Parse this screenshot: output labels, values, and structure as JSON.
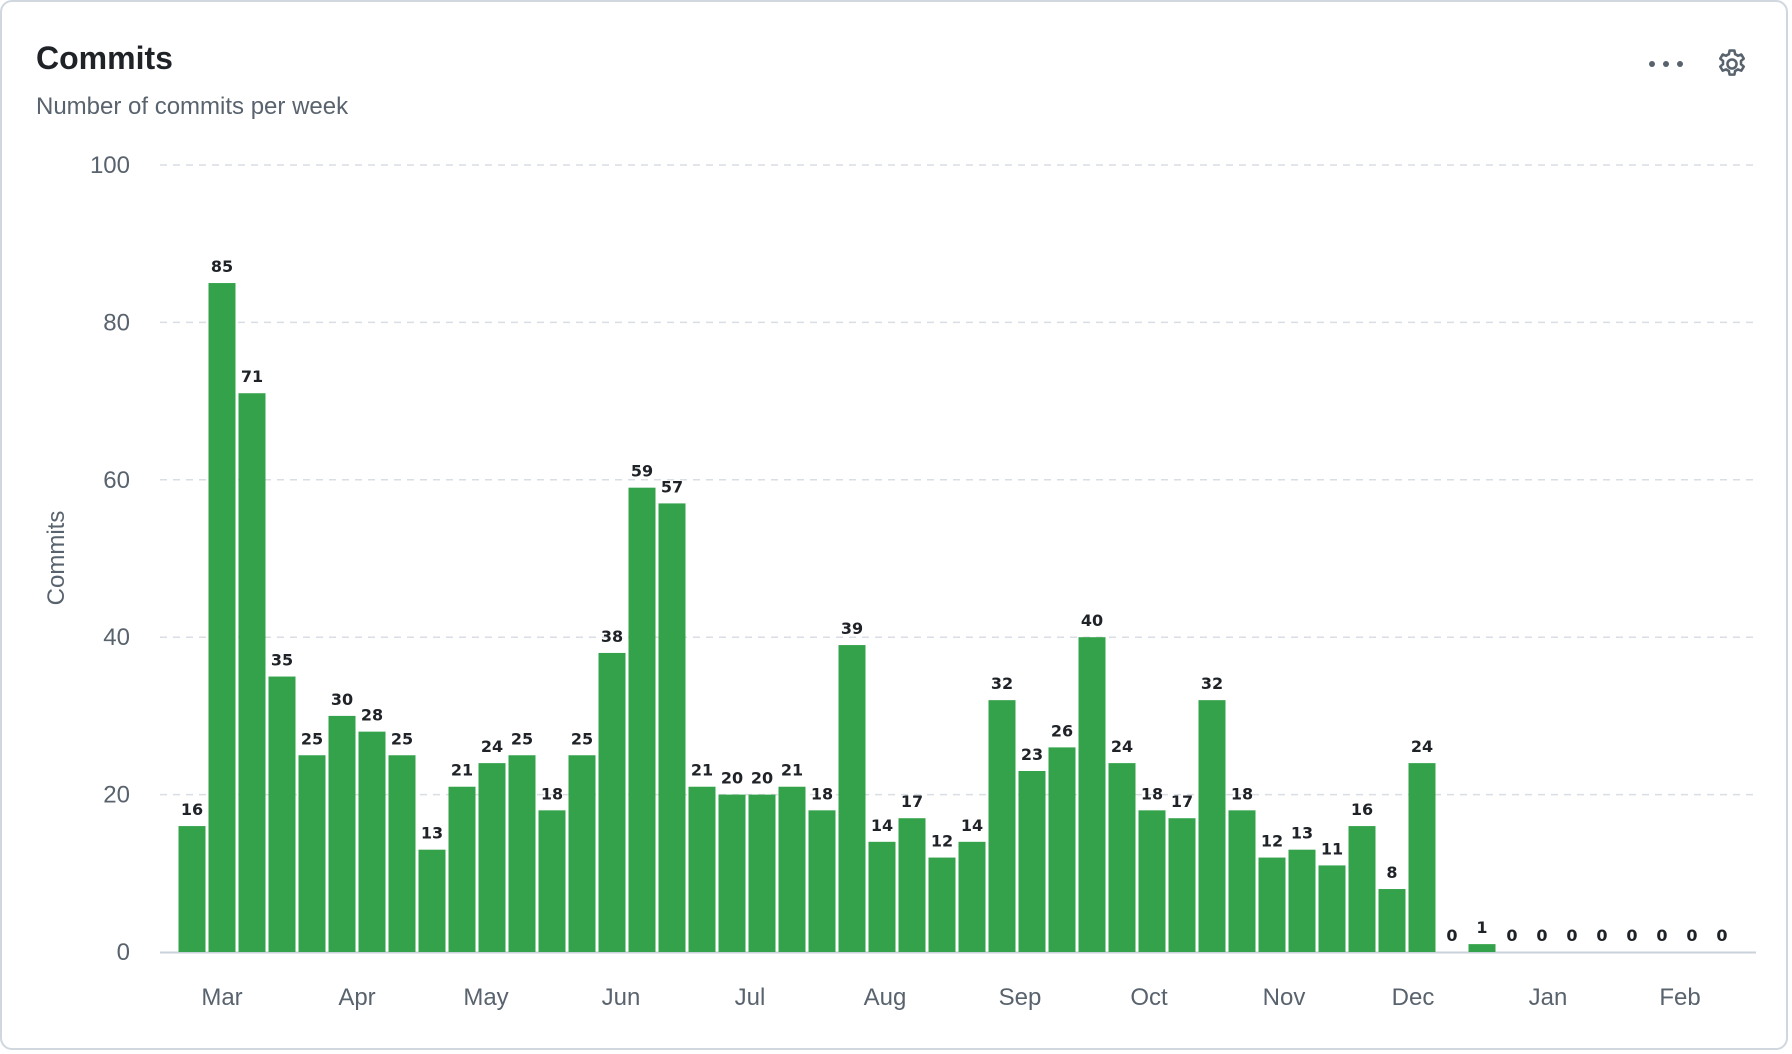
{
  "header": {
    "title": "Commits",
    "subtitle": "Number of commits per week"
  },
  "actions": {
    "more_icon": "kebab-horizontal-icon",
    "settings_icon": "gear-icon"
  },
  "colors": {
    "bar": "#33a24a",
    "grid": "#d8dee4",
    "axis_text": "#59636e"
  },
  "chart_data": {
    "type": "bar",
    "ylabel": "Commits",
    "xlabel": "",
    "ylim": [
      0,
      100
    ],
    "yticks": [
      0,
      20,
      40,
      60,
      80,
      100
    ],
    "grid": true,
    "legend": "none",
    "month_labels": [
      {
        "label": "Mar",
        "week_index": 1
      },
      {
        "label": "Apr",
        "week_index": 5.5
      },
      {
        "label": "May",
        "week_index": 9.8
      },
      {
        "label": "Jun",
        "week_index": 14.3
      },
      {
        "label": "Jul",
        "week_index": 18.6
      },
      {
        "label": "Aug",
        "week_index": 23.1
      },
      {
        "label": "Sep",
        "week_index": 27.6
      },
      {
        "label": "Oct",
        "week_index": 31.9
      },
      {
        "label": "Nov",
        "week_index": 36.4
      },
      {
        "label": "Dec",
        "week_index": 40.7
      },
      {
        "label": "Jan",
        "week_index": 45.2
      },
      {
        "label": "Feb",
        "week_index": 49.6
      }
    ],
    "values": [
      16,
      85,
      71,
      35,
      25,
      30,
      28,
      25,
      13,
      21,
      24,
      25,
      18,
      25,
      38,
      59,
      57,
      21,
      20,
      20,
      21,
      18,
      39,
      14,
      17,
      12,
      14,
      32,
      23,
      26,
      40,
      24,
      18,
      17,
      32,
      18,
      12,
      13,
      11,
      16,
      8,
      24,
      0,
      1,
      0,
      0,
      0,
      0,
      0,
      0,
      0,
      0
    ]
  }
}
